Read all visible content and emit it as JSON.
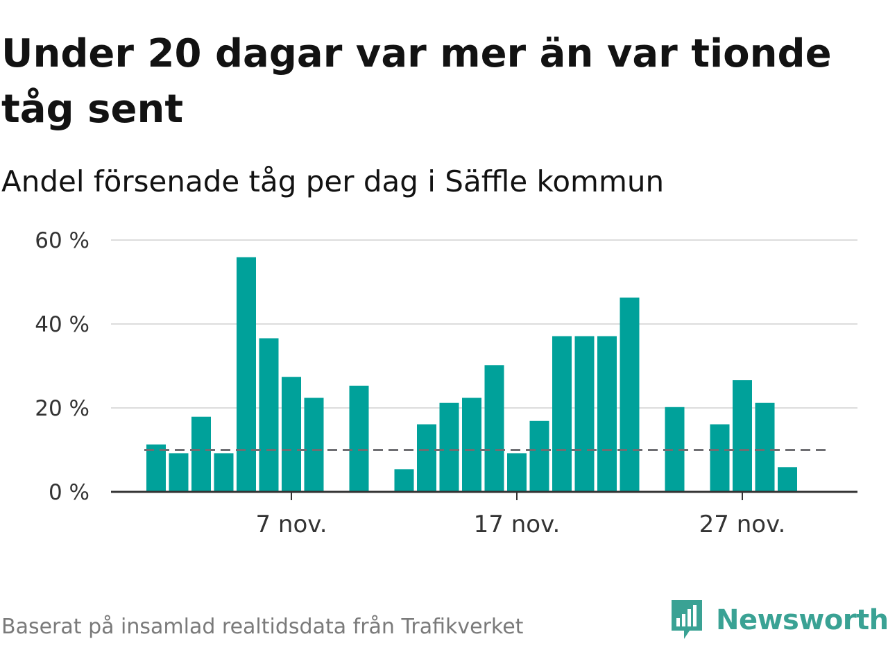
{
  "title": "Under 20 dagar var mer än var tionde tåg sent",
  "subtitle": "Andel försenade tåg per dag i Säffle kommun",
  "footer": "Baserat på insamlad realtidsdata från Trafikverket",
  "brand": {
    "name": "Newsworthy",
    "icon": "newsworthy-logo-icon",
    "color": "#3aa294"
  },
  "chart_data": {
    "type": "bar",
    "title": "Under 20 dagar var mer än var tionde tåg sent",
    "subtitle": "Andel försenade tåg per dag i Säffle kommun",
    "xlabel": "",
    "ylabel": "",
    "bar_color": "#00a19a",
    "grid": true,
    "ylim": [
      0,
      60
    ],
    "yticks": [
      {
        "value": 0,
        "label": "0 %"
      },
      {
        "value": 20,
        "label": "20 %"
      },
      {
        "value": 40,
        "label": "40 %"
      },
      {
        "value": 60,
        "label": "60 %"
      }
    ],
    "xticks": [
      {
        "day": 7,
        "label": "7 nov."
      },
      {
        "day": 17,
        "label": "17 nov."
      },
      {
        "day": 27,
        "label": "27 nov."
      }
    ],
    "reference_line": {
      "value": 10,
      "style": "dashed",
      "color": "#6e6e72"
    },
    "x": [
      "1 nov.",
      "2 nov.",
      "3 nov.",
      "4 nov.",
      "5 nov.",
      "6 nov.",
      "7 nov.",
      "8 nov.",
      "9 nov.",
      "10 nov.",
      "11 nov.",
      "12 nov.",
      "13 nov.",
      "14 nov.",
      "15 nov.",
      "16 nov.",
      "17 nov.",
      "18 nov.",
      "19 nov.",
      "20 nov.",
      "21 nov.",
      "22 nov.",
      "23 nov.",
      "24 nov.",
      "25 nov.",
      "26 nov.",
      "27 nov.",
      "28 nov.",
      "29 nov."
    ],
    "values": [
      11.3,
      9.2,
      17.9,
      9.2,
      55.9,
      36.6,
      27.4,
      22.4,
      null,
      25.3,
      null,
      5.4,
      16.1,
      21.2,
      22.4,
      30.2,
      9.2,
      16.9,
      37.1,
      37.1,
      37.1,
      46.3,
      null,
      20.2,
      null,
      16.1,
      26.6,
      21.2,
      5.9
    ]
  }
}
